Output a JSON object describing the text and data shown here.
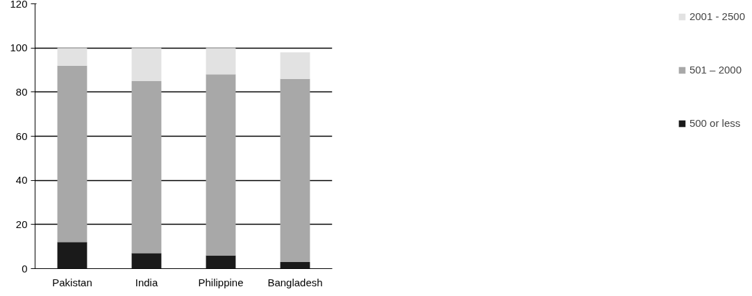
{
  "chart_data": {
    "type": "bar",
    "stacked": true,
    "categories": [
      "Pakistan",
      "India",
      "Philippine",
      "Bangladesh"
    ],
    "series": [
      {
        "name": "500 or less",
        "color": "#1a1a1a",
        "values": [
          12,
          7,
          6,
          3
        ]
      },
      {
        "name": "501 – 2000",
        "color": "#a8a8a8",
        "values": [
          80,
          78,
          82,
          83
        ]
      },
      {
        "name": "2001 - 2500",
        "color": "#e2e2e2",
        "values": [
          8,
          15,
          12,
          12
        ]
      }
    ],
    "ylim": [
      0,
      120
    ],
    "yticks": [
      0,
      20,
      40,
      60,
      80,
      100,
      120
    ],
    "grid": "y",
    "legend": "right"
  }
}
